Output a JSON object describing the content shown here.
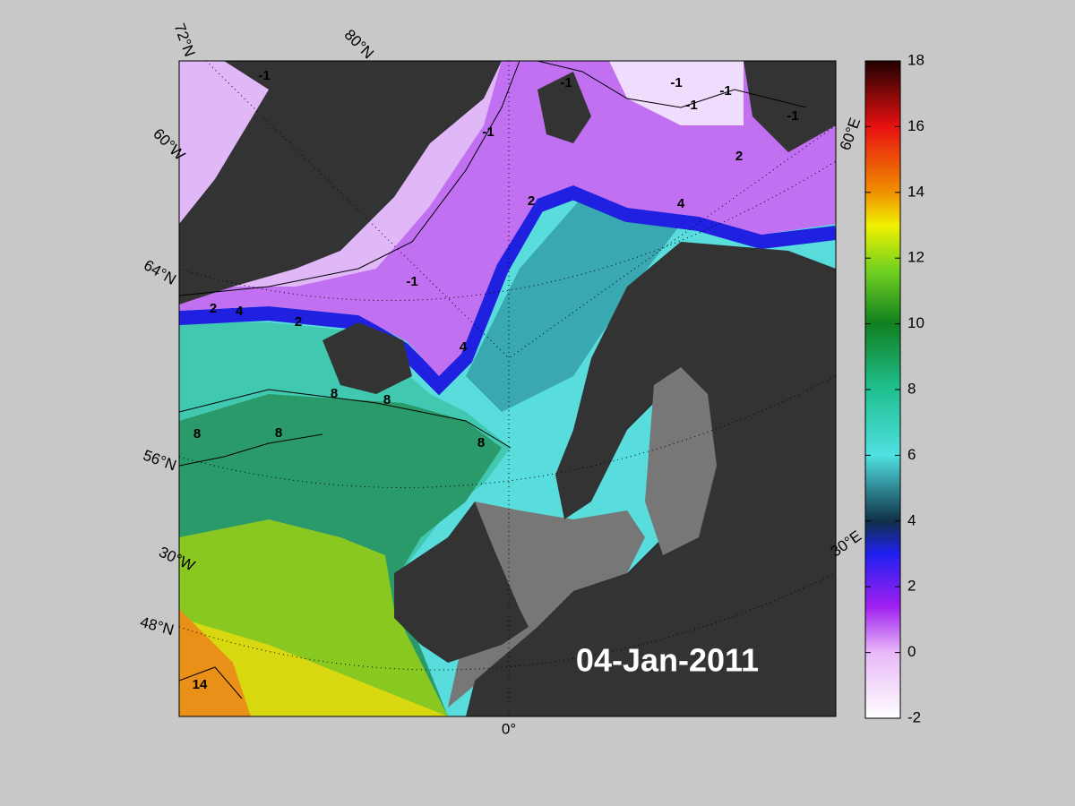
{
  "map": {
    "date": "04-Jan-2011",
    "graticule_labels": [
      "72°N",
      "80°N",
      "60°W",
      "64°N",
      "56°N",
      "30°W",
      "48°N",
      "60°E",
      "30°E",
      "0°"
    ],
    "contour_labels": [
      "-1",
      "-1",
      "-1",
      "-1",
      "-1",
      "-1",
      "-1",
      "-1",
      "2",
      "2",
      "2",
      "2",
      "4",
      "4",
      "4",
      "8",
      "8",
      "8",
      "8",
      "8",
      "14"
    ],
    "colorbar": {
      "lim": [
        -2,
        18
      ],
      "ticks": [
        -2,
        0,
        2,
        4,
        6,
        8,
        10,
        12,
        14,
        16,
        18
      ]
    }
  }
}
